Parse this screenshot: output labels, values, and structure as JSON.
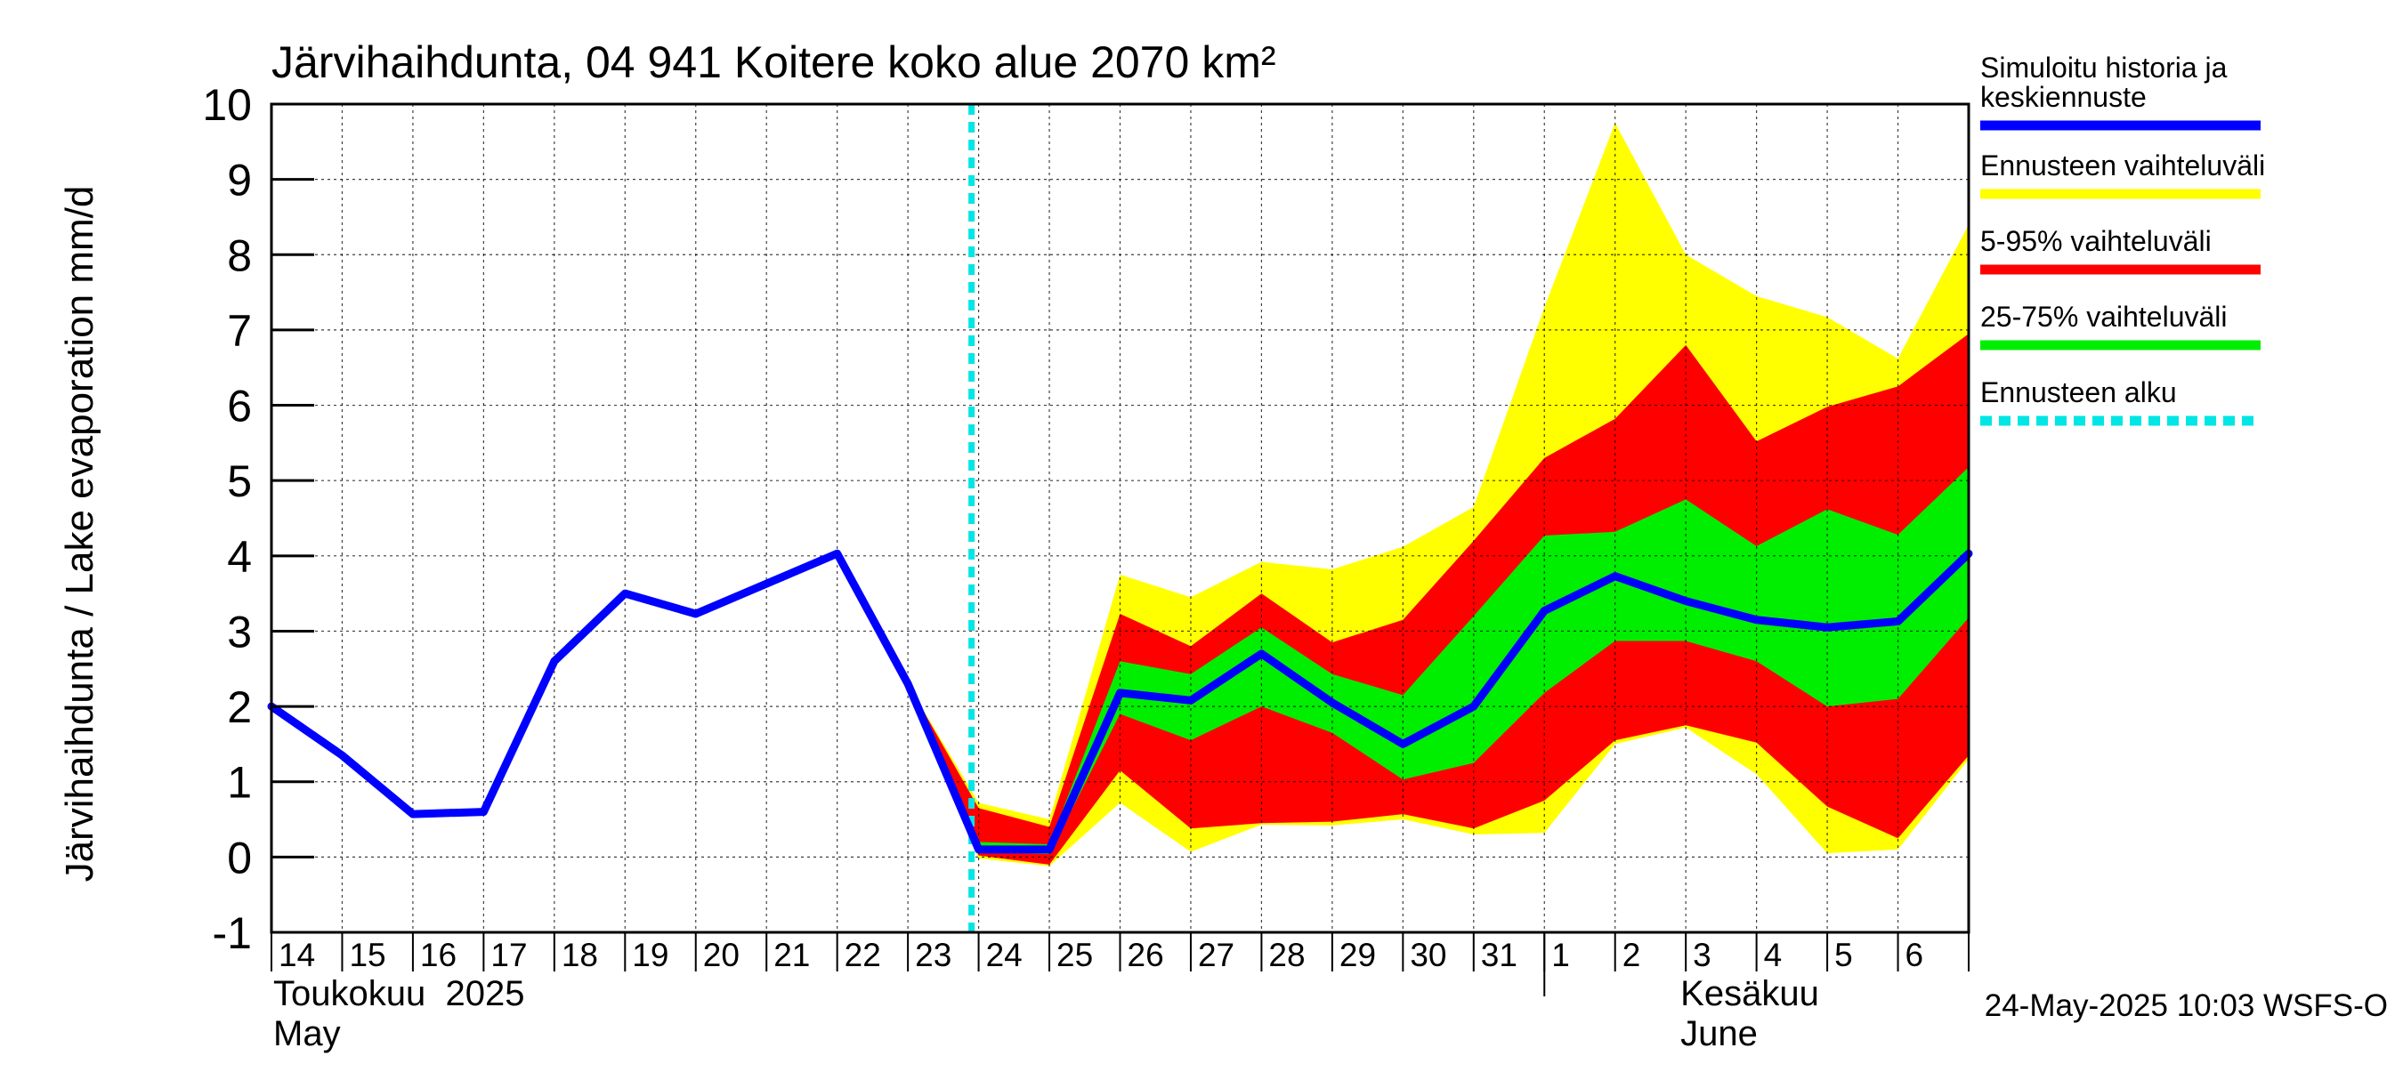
{
  "chart_data": {
    "type": "area",
    "title": "Järvihaihdunta, 04 941 Koitere koko alue 2070 km²",
    "ylabel": "Järvihaihdunta / Lake evaporation   mm/d",
    "ylim": [
      -1,
      10
    ],
    "yticks": [
      -1,
      0,
      1,
      2,
      3,
      4,
      5,
      6,
      7,
      8,
      9,
      10
    ],
    "grid": true,
    "x_tick_labels": [
      "14",
      "15",
      "16",
      "17",
      "18",
      "19",
      "20",
      "21",
      "22",
      "23",
      "24",
      "25",
      "26",
      "27",
      "28",
      "29",
      "30",
      "31",
      "1",
      "2",
      "3",
      "4",
      "5",
      "6"
    ],
    "month_labels": [
      {
        "line1": "Toukokuu  2025",
        "line2": "May"
      },
      {
        "line1": "Kesäkuu",
        "line2": "June"
      }
    ],
    "forecast_start_day": 23.8,
    "history": {
      "name": "Simuloitu historia ja keskiennuste",
      "color": "#0000ff",
      "values": [
        2.0,
        1.35,
        0.57,
        0.6,
        2.6,
        3.5,
        3.23,
        3.63,
        4.03,
        2.3,
        0.1,
        0.1,
        2.18,
        2.08,
        2.7,
        2.05,
        1.5,
        2.0,
        3.27,
        3.73,
        3.4,
        3.15,
        3.05,
        3.13,
        4.03
      ]
    },
    "bands": [
      {
        "name": "Ennusteen vaihteluväli",
        "color": "#ffff00",
        "start_index": 9,
        "upper": [
          2.3,
          0.72,
          0.5,
          3.75,
          3.45,
          3.92,
          3.82,
          4.12,
          4.65,
          7.3,
          9.75,
          8.0,
          7.45,
          7.17,
          6.62,
          8.4
        ],
        "lower": [
          2.3,
          -0.02,
          -0.12,
          0.72,
          0.07,
          0.43,
          0.42,
          0.5,
          0.3,
          0.32,
          1.5,
          1.72,
          1.1,
          0.05,
          0.1,
          1.3
        ]
      },
      {
        "name": "5-95% vaihteluväli",
        "color": "#ff0000",
        "start_index": 9,
        "upper": [
          2.3,
          0.65,
          0.4,
          3.23,
          2.8,
          3.5,
          2.85,
          3.15,
          4.2,
          5.3,
          5.82,
          6.8,
          5.52,
          5.98,
          6.25,
          6.95
        ],
        "lower": [
          2.3,
          0.02,
          -0.1,
          1.15,
          0.38,
          0.45,
          0.47,
          0.57,
          0.38,
          0.75,
          1.55,
          1.75,
          1.52,
          0.67,
          0.25,
          1.35
        ]
      },
      {
        "name": "25-75% vaihteluväli",
        "color": "#00ee00",
        "start_index": 9,
        "upper": [
          2.3,
          0.2,
          0.17,
          2.6,
          2.43,
          3.05,
          2.43,
          2.15,
          3.2,
          4.27,
          4.32,
          4.75,
          4.13,
          4.62,
          4.28,
          5.18
        ],
        "lower": [
          2.3,
          0.06,
          0.04,
          1.9,
          1.55,
          2.0,
          1.65,
          1.03,
          1.25,
          2.18,
          2.87,
          2.87,
          2.6,
          2.0,
          2.1,
          3.18
        ]
      }
    ],
    "legend": {
      "placement": "right",
      "items": [
        {
          "label": "Simuloitu historia ja keskiennuste",
          "line1": "Simuloitu historia ja",
          "line2": "keskiennuste",
          "color": "#0000ff",
          "style": "solid"
        },
        {
          "label": "Ennusteen vaihteluväli",
          "line1": "Ennusteen vaihteluväli",
          "line2": "",
          "color": "#ffff00",
          "style": "solid"
        },
        {
          "label": "5-95% vaihteluväli",
          "line1": "5-95% vaihteluväli",
          "line2": "",
          "color": "#ff0000",
          "style": "solid"
        },
        {
          "label": "25-75% vaihteluväli",
          "line1": "25-75% vaihteluväli",
          "line2": "",
          "color": "#00ee00",
          "style": "solid"
        },
        {
          "label": "Ennusteen alku",
          "line1": "Ennusteen alku",
          "line2": "",
          "color": "#00e5e5",
          "style": "dashed"
        }
      ]
    },
    "footer": "24-May-2025 10:03 WSFS-O"
  }
}
